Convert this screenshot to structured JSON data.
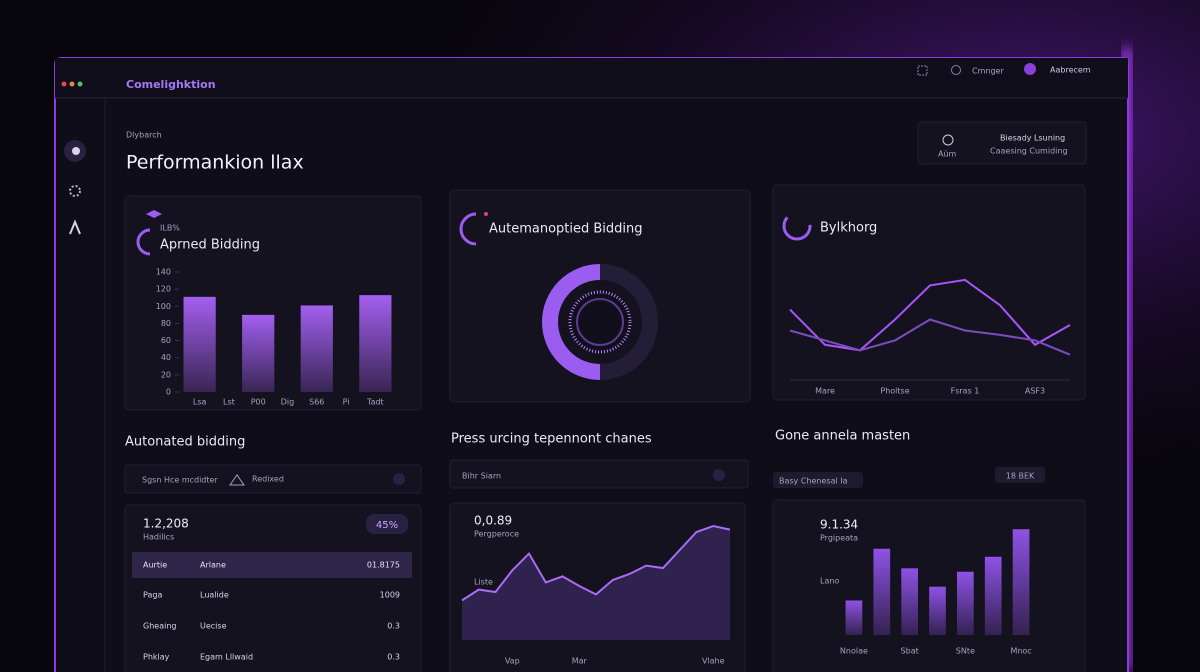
{
  "window": {
    "brand": "Comelighktion",
    "search": "Cmnger",
    "user": "Aabrecem"
  },
  "header": {
    "breadcrumb": "Dlybarch",
    "title": "Performankion llax"
  },
  "status_card": {
    "icon_label": "Aüm",
    "line1": "Biesady Lsuning",
    "line2": "Caaesing Cumiding"
  },
  "chart_data": [
    {
      "type": "bar",
      "title": "Aprned Bidding",
      "subtitle": "ILB%",
      "categories": [
        "Lsa",
        "Lst",
        "P00",
        "Dig",
        "S66",
        "Pi",
        "Tadt"
      ],
      "values": [
        111,
        null,
        90,
        null,
        101,
        null,
        113
      ],
      "color": "#a35ff0",
      "ylim": [
        0,
        140
      ],
      "yticks": [
        0,
        20,
        40,
        60,
        80,
        100,
        120,
        140
      ],
      "grid": false
    },
    {
      "type": "gauge",
      "title": "Autemanoptied Bidding",
      "value": 50,
      "ylim": [
        0,
        100
      ],
      "color": "#9b5cf0"
    },
    {
      "type": "line",
      "title": "Bylkhorg",
      "categories": [
        null,
        "Mare",
        null,
        "Pholtse",
        null,
        "Fsras 1",
        null,
        "ASF3",
        null
      ],
      "series": [
        {
          "color": "#a855f7",
          "values": [
            64,
            32,
            27,
            55,
            86,
            91,
            68,
            32,
            50
          ]
        },
        {
          "color": "#7a4cc0",
          "values": [
            45,
            36,
            27,
            36,
            55,
            45,
            41,
            36,
            23
          ]
        }
      ],
      "ylim": [
        0,
        100
      ]
    },
    {
      "type": "area",
      "stat": "0,0.89",
      "stat_label": "Pergperoce",
      "annotation": "Liste",
      "categories": [
        null,
        null,
        null,
        "Vap",
        null,
        null,
        null,
        "Mar",
        null,
        null,
        null,
        null,
        null,
        null,
        null,
        "Vlahe",
        null
      ],
      "values": [
        33,
        42,
        40,
        58,
        72,
        48,
        53,
        45,
        38,
        50,
        55,
        62,
        60,
        75,
        90,
        95,
        92
      ],
      "color": "#a86cf5",
      "ylim": [
        0,
        100
      ]
    },
    {
      "type": "bar",
      "stat": "9.1.34",
      "stat_label": "Prgipeata",
      "annotation": "Lano",
      "categories": [
        "Nnolae",
        null,
        "Sbat",
        null,
        "SNte",
        null,
        "Mnoc"
      ],
      "values": [
        30,
        75,
        58,
        42,
        55,
        68,
        92
      ],
      "color": "#8f52e6",
      "ylim": [
        0,
        100
      ]
    }
  ],
  "sections": [
    {
      "title": "Autonated bidding",
      "filter": "Sgsn Hce mcdidter",
      "option": "Redixed",
      "stat": "1.2,208",
      "stat_label": "Hadilics",
      "badge": "45%",
      "table": {
        "header": [
          "Aurtie",
          "Arlane",
          "01.8175"
        ],
        "rows": [
          [
            "Paga",
            "Lualide",
            "1009"
          ],
          [
            "Gheaing",
            "Uecise",
            "0.3"
          ],
          [
            "Phklay",
            "Egam Lllwaid",
            "0.3"
          ]
        ]
      }
    },
    {
      "title": "Press urcing tepennont chanes",
      "filter": "Bihr Siarn"
    },
    {
      "title": "Gone annela masten",
      "tag": "Basy Chenesal Ia",
      "badge": "18 BEK"
    }
  ]
}
